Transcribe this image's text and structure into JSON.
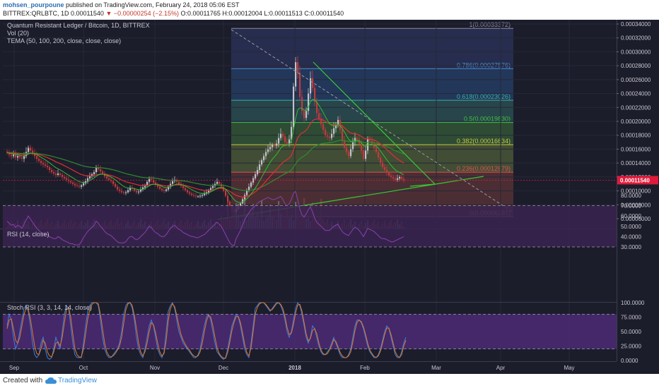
{
  "header": {
    "author": "mohsen_pourpoune",
    "published_text": "published on TradingView.com, February 24, 2018 05:06 EST",
    "symbol": "BITTREX:QRLBTC, 1D",
    "last_price": "0.00011540",
    "change": "−0.00000254 (−2.15%)",
    "ohlc": "O:0.00011765 H:0.00012004 L:0.00011513 C:0.00011540"
  },
  "legend": {
    "title": "Quantum Resistant Ledger / Bitcoin, 1D, BITTREX",
    "vol": "Vol (20)",
    "tema": "TEMA (50, 100, 200, close, close, close)"
  },
  "footer": {
    "created_with": "Created with",
    "brand": "TradingView"
  },
  "colors": {
    "background": "#1c1d2b",
    "up": "#c2c2c8",
    "down": "#c23a3c",
    "tema_fast": "#33bb33",
    "tema_mid": "#e03030",
    "tema_slow": "#2e8b2e",
    "trendline": "#33cc33",
    "rsi_line": "#8a3fb0",
    "stoch_k": "#3a7ee0",
    "stoch_d": "#e07a2a",
    "price_tag": "#e01a3a"
  },
  "chart_data": [
    {
      "type": "candlestick",
      "title": "Quantum Resistant Ledger / Bitcoin, 1D, BITTREX",
      "x_tick_labels": [
        "Sep",
        "Oct",
        "Nov",
        "Dec",
        "2018",
        "Feb",
        "Mar",
        "Apr",
        "May"
      ],
      "y_tick_labels": [
        "0.00034000",
        "0.00032000",
        "0.00030000",
        "0.00028000",
        "0.00026000",
        "0.00024000",
        "0.00022000",
        "0.00020000",
        "0.00018000",
        "0.00016000",
        "0.00014000",
        "0.00012000",
        "0.00010000",
        "0.00008000",
        "0.00006000"
      ],
      "ylim": [
        4e-05,
        0.00035
      ],
      "last_price_label": "0.00011540",
      "fib_levels": [
        {
          "ratio": "1",
          "price": 0.00033372,
          "label": "1(0.00033372)"
        },
        {
          "ratio": "0.786",
          "price": 0.00027576,
          "label": "0.786(0.00027576)"
        },
        {
          "ratio": "0.618",
          "price": 0.00023026,
          "label": "0.618(0.00023026)"
        },
        {
          "ratio": "0.5",
          "price": 0.0001983,
          "label": "0.5(0.00019830)"
        },
        {
          "ratio": "0.382",
          "price": 0.00016634,
          "label": "0.382(0.00016634)"
        },
        {
          "ratio": "0.236",
          "price": 0.00012679,
          "label": "0.236(0.00012679)"
        },
        {
          "ratio": "0",
          "price": 6.287e-05,
          "label": "0(0.00006287)"
        }
      ],
      "close_series": [
        0.000155,
        0.000152,
        0.00015,
        0.000152,
        0.000148,
        0.00015,
        0.000148,
        0.000146,
        0.00015,
        0.000156,
        0.000162,
        0.000158,
        0.000154,
        0.00015,
        0.000146,
        0.000143,
        0.00014,
        0.000138,
        0.000136,
        0.000134,
        0.00013,
        0.000127,
        0.000125,
        0.000123,
        0.000125,
        0.000123,
        0.00012,
        0.000118,
        0.000116,
        0.000114,
        0.000112,
        0.00011,
        0.000108,
        0.000107,
        0.000106,
        0.000108,
        0.000111,
        0.000114,
        0.000118,
        0.000121,
        0.000124,
        0.000127,
        0.000133,
        0.000131,
        0.000128,
        0.000125,
        0.000121,
        0.000118,
        0.000116,
        0.000114,
        0.00011,
        0.000106,
        0.000102,
        0.0001,
        9.8e-05,
        9.7e-05,
        9.8e-05,
        0.000101,
        0.000104,
        0.000103,
        0.0001,
        9.8e-05,
        9.9e-05,
        0.000102,
        0.000105,
        0.000108,
        0.000113,
        0.000117,
        0.000116,
        0.000112,
        0.000109,
        0.000106,
        0.000103,
        0.000101,
        0.0001,
        0.000102,
        0.000106,
        0.00011,
        0.000114,
        0.000116,
        0.000113,
        0.00011,
        0.000107,
        0.000104,
        0.000101,
        9.8e-05,
        9.6e-05,
        9.4e-05,
        9.3e-05,
        9.2e-05,
        9.2e-05,
        9.3e-05,
        9.4e-05,
        9.6e-05,
        9.8e-05,
        0.000101,
        0.000104,
        0.000107,
        0.00011,
        0.000113,
        0.00011,
        0.000106,
        0.0001,
        9.3e-05,
        8.5e-05,
        7.8e-05,
        7.3e-05,
        7e-05,
        7.4e-05,
        7.8e-05,
        8.2e-05,
        8.8e-05,
        9.4e-05,
        0.0001,
        0.000106,
        0.000112,
        0.000118,
        0.000124,
        0.00013,
        0.000138,
        0.000144,
        0.00015,
        0.000156,
        0.00016,
        0.000163,
        0.000166,
        0.000165,
        0.000168,
        0.000176,
        0.000182,
        0.000178,
        0.00017,
        0.000168,
        0.000174,
        0.000192,
        0.00025,
        0.000285,
        0.00027,
        0.000235,
        0.000215,
        0.000205,
        0.000215,
        0.00024,
        0.000262,
        0.000248,
        0.000228,
        0.000212,
        0.000204,
        0.000196,
        0.000188,
        0.00018,
        0.000178,
        0.000176,
        0.000182,
        0.00019,
        0.000195,
        0.000202,
        0.000188,
        0.000172,
        0.000162,
        0.000156,
        0.00015,
        0.00016,
        0.00017,
        0.000176,
        0.000174,
        0.000168,
        0.000158,
        0.000146,
        0.000158,
        0.000175,
        0.000172,
        0.000168,
        0.000162,
        0.000156,
        0.000148,
        0.00014,
        0.000134,
        0.00013,
        0.000126,
        0.000122,
        0.00012,
        0.000118,
        0.000116,
        0.000118,
        0.00012,
        0.000117,
        0.0001154
      ]
    },
    {
      "type": "bar",
      "title": "Vol (20)",
      "series": [
        {
          "name": "Vol",
          "values": []
        }
      ]
    },
    {
      "type": "line",
      "title": "RSI (14, close)",
      "y_tick_labels": [
        "80.0000",
        "70.0000",
        "60.0000",
        "50.0000",
        "40.0000",
        "30.0000"
      ],
      "ylim": [
        25,
        82
      ],
      "bands": [
        70,
        30
      ],
      "series": [
        {
          "name": "RSI",
          "values": [
            55,
            53,
            51,
            52,
            49,
            51,
            50,
            48,
            52,
            56,
            60,
            57,
            54,
            51,
            48,
            46,
            44,
            43,
            42,
            42,
            40,
            39,
            38,
            38,
            40,
            39,
            37,
            36,
            35,
            34,
            33,
            33,
            32,
            32,
            32,
            35,
            39,
            42,
            45,
            47,
            49,
            51,
            55,
            53,
            50,
            48,
            45,
            43,
            42,
            41,
            39,
            37,
            35,
            34,
            34,
            34,
            35,
            38,
            40,
            40,
            38,
            37,
            38,
            40,
            42,
            44,
            47,
            50,
            49,
            46,
            44,
            43,
            41,
            40,
            40,
            42,
            45,
            48,
            50,
            51,
            49,
            47,
            46,
            44,
            43,
            42,
            41,
            40,
            40,
            39,
            39,
            40,
            41,
            42,
            44,
            46,
            48,
            50,
            52,
            54,
            52,
            50,
            46,
            42,
            38,
            34,
            32,
            31,
            38,
            42,
            46,
            51,
            56,
            60,
            63,
            66,
            68,
            70,
            72,
            74,
            75,
            76,
            77,
            78,
            77,
            76,
            76,
            77,
            78,
            79,
            76,
            72,
            70,
            72,
            76,
            82,
            84,
            76,
            67,
            61,
            59,
            62,
            66,
            69,
            64,
            58,
            54,
            52,
            50,
            48,
            46,
            46,
            46,
            48,
            50,
            51,
            52,
            48,
            45,
            43,
            42,
            41,
            44,
            47,
            49,
            48,
            46,
            43,
            40,
            44,
            48,
            47,
            46,
            45,
            43,
            41,
            39,
            38,
            38,
            37,
            36,
            35,
            35,
            36,
            37,
            38,
            39,
            40
          ]
        }
      ]
    },
    {
      "type": "line",
      "title": "Stoch RSI (3, 3, 14, 14, close)",
      "y_tick_labels": [
        "100.0000",
        "75.0000",
        "50.0000",
        "25.0000",
        "0.0000"
      ],
      "ylim": [
        -5,
        105
      ],
      "bands": [
        80,
        20
      ],
      "series": [
        {
          "name": "K",
          "values": [
            60,
            80,
            70,
            40,
            20,
            30,
            50,
            70,
            90,
            95,
            85,
            60,
            30,
            10,
            5,
            10,
            30,
            40,
            20,
            5,
            2,
            5,
            20,
            40,
            30,
            20,
            50,
            80,
            95,
            90,
            60,
            30,
            10,
            5,
            5,
            5,
            30,
            60,
            85,
            95,
            100,
            100,
            100,
            95,
            70,
            40,
            20,
            10,
            5,
            5,
            10,
            15,
            20,
            30,
            50,
            80,
            95,
            100,
            100,
            90,
            70,
            40,
            20,
            10,
            5,
            20,
            40,
            60,
            70,
            60,
            40,
            20,
            10,
            5,
            15,
            50,
            85,
            95,
            100,
            90,
            70,
            50,
            40,
            30,
            25,
            20,
            15,
            10,
            5,
            5,
            10,
            20,
            40,
            60,
            75,
            80,
            70,
            50,
            30,
            15,
            10,
            5,
            2,
            5,
            20,
            40,
            60,
            70,
            80,
            75,
            60,
            40,
            20,
            10,
            5,
            30,
            60,
            90,
            95,
            100,
            100,
            100,
            95,
            90,
            85,
            90,
            95,
            100,
            100,
            95,
            85,
            70,
            50,
            40,
            50,
            70,
            90,
            100,
            95,
            80,
            60,
            40,
            30,
            40,
            60,
            55,
            40,
            25,
            15,
            10,
            10,
            15,
            20,
            30,
            40,
            30,
            20,
            10,
            5,
            5,
            5,
            10,
            20,
            40,
            60,
            70,
            70,
            65,
            55,
            40,
            25,
            15,
            10,
            5,
            5,
            10,
            20,
            35,
            50,
            60,
            55,
            40,
            25,
            10,
            5,
            5,
            15,
            30,
            40
          ]
        },
        {
          "name": "D",
          "values": [
            55,
            70,
            72,
            55,
            35,
            30,
            40,
            60,
            80,
            90,
            88,
            72,
            48,
            25,
            12,
            10,
            20,
            35,
            30,
            15,
            8,
            6,
            15,
            30,
            32,
            25,
            40,
            65,
            88,
            92,
            75,
            45,
            20,
            10,
            6,
            6,
            20,
            45,
            72,
            88,
            97,
            100,
            100,
            98,
            80,
            55,
            30,
            15,
            8,
            6,
            8,
            12,
            18,
            25,
            40,
            65,
            88,
            98,
            100,
            95,
            78,
            55,
            30,
            15,
            8,
            15,
            30,
            50,
            65,
            62,
            48,
            30,
            15,
            8,
            12,
            35,
            70,
            90,
            98,
            93,
            78,
            60,
            45,
            35,
            28,
            22,
            18,
            12,
            8,
            6,
            8,
            15,
            30,
            50,
            68,
            78,
            75,
            60,
            40,
            22,
            12,
            7,
            4,
            4,
            14,
            32,
            52,
            66,
            76,
            76,
            66,
            48,
            28,
            14,
            8,
            22,
            50,
            80,
            92,
            98,
            100,
            100,
            97,
            92,
            87,
            88,
            93,
            98,
            100,
            97,
            90,
            76,
            57,
            45,
            47,
            62,
            82,
            96,
            97,
            86,
            66,
            46,
            34,
            38,
            52,
            55,
            46,
            30,
            18,
            12,
            10,
            12,
            18,
            26,
            36,
            33,
            24,
            14,
            8,
            5,
            5,
            8,
            15,
            32,
            52,
            66,
            70,
            67,
            58,
            45,
            30,
            18,
            12,
            7,
            5,
            8,
            16,
            30,
            45,
            56,
            56,
            45,
            30,
            15,
            8,
            5,
            10,
            25,
            35
          ]
        }
      ]
    }
  ]
}
